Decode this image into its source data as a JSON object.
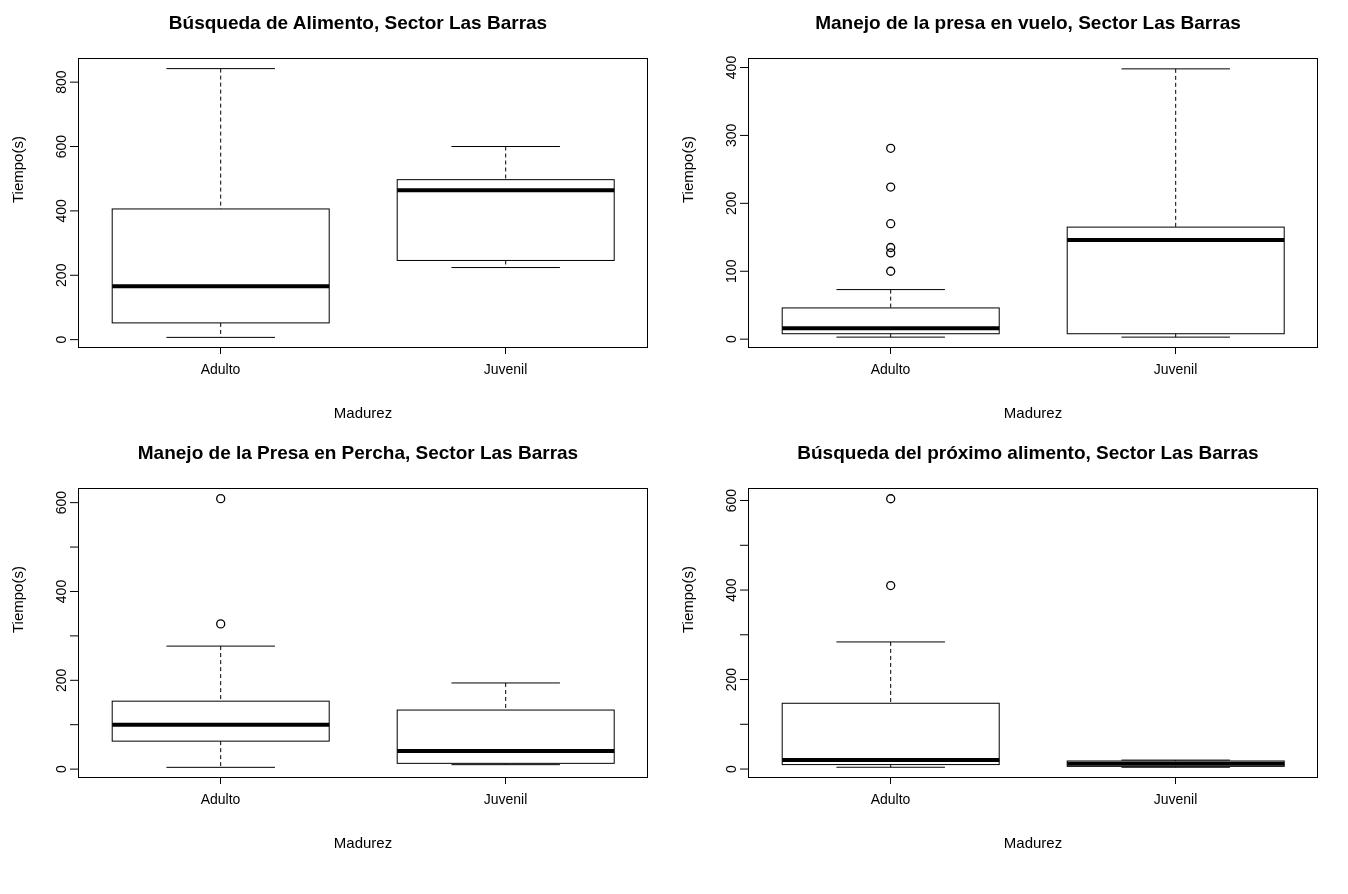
{
  "chart_data": [
    {
      "type": "box",
      "title": "Búsqueda de Alimento, Sector Las Barras",
      "xlabel": "Madurez",
      "ylabel": "Tiempo(s)",
      "categories": [
        "Adulto",
        "Juvenil"
      ],
      "ylim": [
        -26,
        875
      ],
      "yticks": [
        0,
        200,
        400,
        600,
        800
      ],
      "boxes": [
        {
          "low": 7,
          "q1": 52,
          "median": 166,
          "q3": 406,
          "high": 842
        },
        {
          "low": 224,
          "q1": 246,
          "median": 464,
          "q3": 497,
          "high": 600
        }
      ]
    },
    {
      "type": "box",
      "title": "Manejo de la presa en vuelo, Sector Las Barras",
      "xlabel": "Madurez",
      "ylabel": "Tiempo(s)",
      "categories": [
        "Adulto",
        "Juvenil"
      ],
      "ylim": [
        -13,
        414
      ],
      "yticks": [
        0,
        100,
        200,
        300,
        400
      ],
      "boxes": [
        {
          "low": 3,
          "q1": 8,
          "median": 16,
          "q3": 46,
          "high": 73,
          "outliers": [
            100,
            127,
            135,
            170,
            224,
            281
          ]
        },
        {
          "low": 3,
          "q1": 8,
          "median": 146,
          "q3": 165,
          "high": 398
        }
      ]
    },
    {
      "type": "box",
      "title": "Manejo de la Presa en Percha, Sector Las Barras",
      "xlabel": "Madurez",
      "ylabel": "Tiempo(s)",
      "categories": [
        "Adulto",
        "Juvenil"
      ],
      "ylim": [
        -20,
        633
      ],
      "yticks": [
        0,
        {
          "value": 100,
          "label": null
        },
        200,
        {
          "value": 300,
          "label": null
        },
        400,
        {
          "value": 500,
          "label": null
        },
        600
      ],
      "boxes": [
        {
          "low": 4,
          "q1": 63,
          "median": 100,
          "q3": 153,
          "high": 277,
          "outliers": [
            327,
            609
          ]
        },
        {
          "low": 10,
          "q1": 13,
          "median": 41,
          "q3": 133,
          "high": 194
        }
      ]
    },
    {
      "type": "box",
      "title": "Búsqueda del próximo alimento, Sector Las Barras",
      "xlabel": "Madurez",
      "ylabel": "Tiempo(s)",
      "categories": [
        "Adulto",
        "Juvenil"
      ],
      "ylim": [
        -20,
        628
      ],
      "yticks": [
        0,
        {
          "value": 100,
          "label": null
        },
        200,
        {
          "value": 300,
          "label": null
        },
        400,
        {
          "value": 500,
          "label": null
        },
        600
      ],
      "boxes": [
        {
          "low": 4,
          "q1": 10,
          "median": 20,
          "q3": 147,
          "high": 284,
          "outliers": [
            410,
            604
          ]
        },
        {
          "low": 4,
          "q1": 6,
          "median": 12,
          "q3": 18,
          "high": 20
        }
      ]
    }
  ]
}
